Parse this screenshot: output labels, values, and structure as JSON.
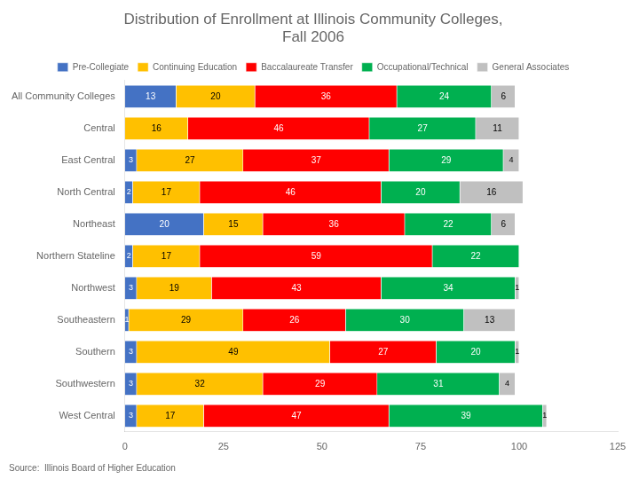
{
  "chart_data": {
    "type": "bar",
    "orientation": "horizontal",
    "stacked": true,
    "title": "Distribution of Enrollment at Illinois Community Colleges,\nFall 2006",
    "annotations": [
      "Source:  Illinois Board of Higher Education"
    ],
    "categories": [
      "All Community Colleges",
      "Central",
      "East Central",
      "North Central",
      "Northeast",
      "Northern Stateline",
      "Northwest",
      "Southeastern",
      "Southern",
      "Southwestern",
      "West Central"
    ],
    "series": [
      {
        "name": "Pre-Collegiate",
        "color": "#4472C4",
        "values": [
          13,
          0,
          3,
          2,
          20,
          2,
          3,
          1,
          3,
          3,
          3
        ]
      },
      {
        "name": "Continuing Education",
        "color": "#FFC000",
        "values": [
          20,
          16,
          27,
          17,
          15,
          17,
          19,
          29,
          49,
          32,
          17
        ]
      },
      {
        "name": "Baccalaureate Transfer",
        "color": "#FF0000",
        "values": [
          36,
          46,
          37,
          46,
          36,
          59,
          43,
          26,
          27,
          29,
          47
        ]
      },
      {
        "name": "Occupational/Technical",
        "color": "#00B050",
        "values": [
          24,
          27,
          29,
          20,
          22,
          22,
          34,
          30,
          20,
          31,
          39
        ]
      },
      {
        "name": "General Associates",
        "color": "#C0C0C0",
        "values": [
          6,
          11,
          4,
          16,
          6,
          0,
          1,
          13,
          1,
          4,
          1
        ]
      }
    ],
    "xlim": [
      0,
      125
    ],
    "xticks": [
      0,
      25,
      50,
      75,
      100,
      125
    ],
    "grid": false,
    "legend": "top",
    "data_labels": true
  }
}
